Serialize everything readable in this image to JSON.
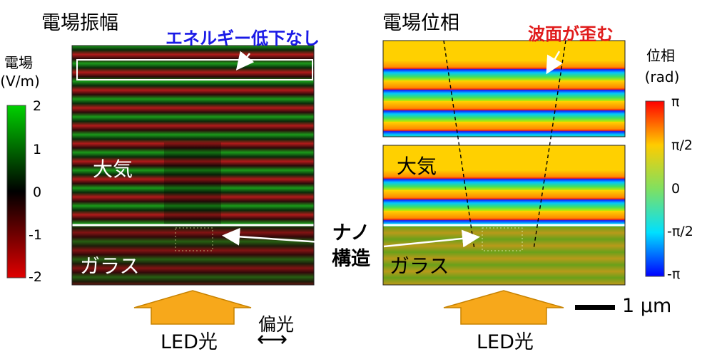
{
  "amplitude_panel": {
    "title": "電場振幅",
    "note": "エネルギー低下なし",
    "region_air": "大気",
    "region_glass": "ガラス",
    "colorbar": {
      "title_line1": "電場",
      "title_line2": "(V/m)",
      "ticks": [
        "2",
        "1",
        "0",
        "-1",
        "-2"
      ],
      "colors": [
        "#00d000",
        "#000000",
        "#e00000"
      ]
    }
  },
  "phase_panel": {
    "title": "電場位相",
    "note": "波面が歪む",
    "region_air": "大気",
    "region_glass": "ガラス",
    "colorbar": {
      "title_line1": "位相",
      "title_line2": "(rad)",
      "ticks": [
        "π",
        "π/2",
        "0",
        "-π/2",
        "-π"
      ],
      "colors": [
        "#ff0000",
        "#ffcc00",
        "#80e060",
        "#00e0ff",
        "#0000ff"
      ]
    }
  },
  "nanostructure_label": {
    "line1": "ナノ",
    "line2": "構造"
  },
  "led_left": "LED光",
  "led_right": "LED光",
  "polarization_label": "偏光",
  "polarization_arrow": "⟷",
  "scalebar_label": "1 µm",
  "colors": {
    "arrow_fill": "#f7a81b",
    "arrow_stroke": "#c78200",
    "note_blue": "#1a1ae6",
    "note_red": "#e01b1b"
  }
}
